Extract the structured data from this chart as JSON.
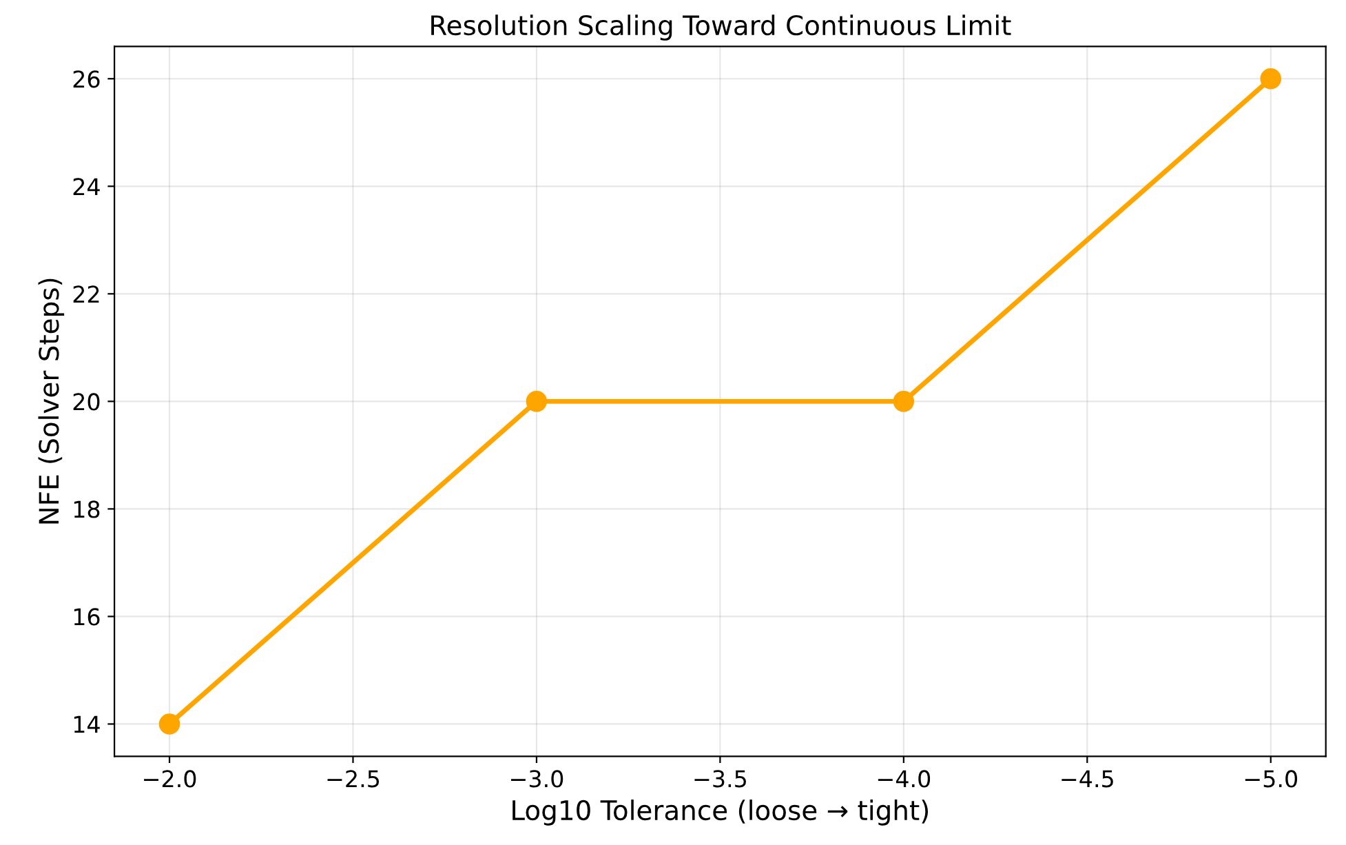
{
  "chart_data": {
    "type": "line",
    "title": "Resolution Scaling Toward Continuous Limit",
    "xlabel": "Log10 Tolerance (loose → tight)",
    "ylabel": "NFE (Solver Steps)",
    "x": [
      -2,
      -3,
      -4,
      -5
    ],
    "series": [
      {
        "color": "#ffa500",
        "values": [
          14,
          20,
          20,
          26
        ]
      }
    ],
    "xlim": [
      -1.85,
      -5.15
    ],
    "ylim": [
      13.4,
      26.6
    ],
    "xticks": [
      {
        "value": -2.0,
        "label": "−2.0"
      },
      {
        "value": -2.5,
        "label": "−2.5"
      },
      {
        "value": -3.0,
        "label": "−3.0"
      },
      {
        "value": -3.5,
        "label": "−3.5"
      },
      {
        "value": -4.0,
        "label": "−4.0"
      },
      {
        "value": -4.5,
        "label": "−4.5"
      },
      {
        "value": -5.0,
        "label": "−5.0"
      }
    ],
    "yticks": [
      14,
      16,
      18,
      20,
      22,
      24,
      26
    ],
    "grid": true,
    "marker": "circle",
    "line_style": "solid"
  }
}
